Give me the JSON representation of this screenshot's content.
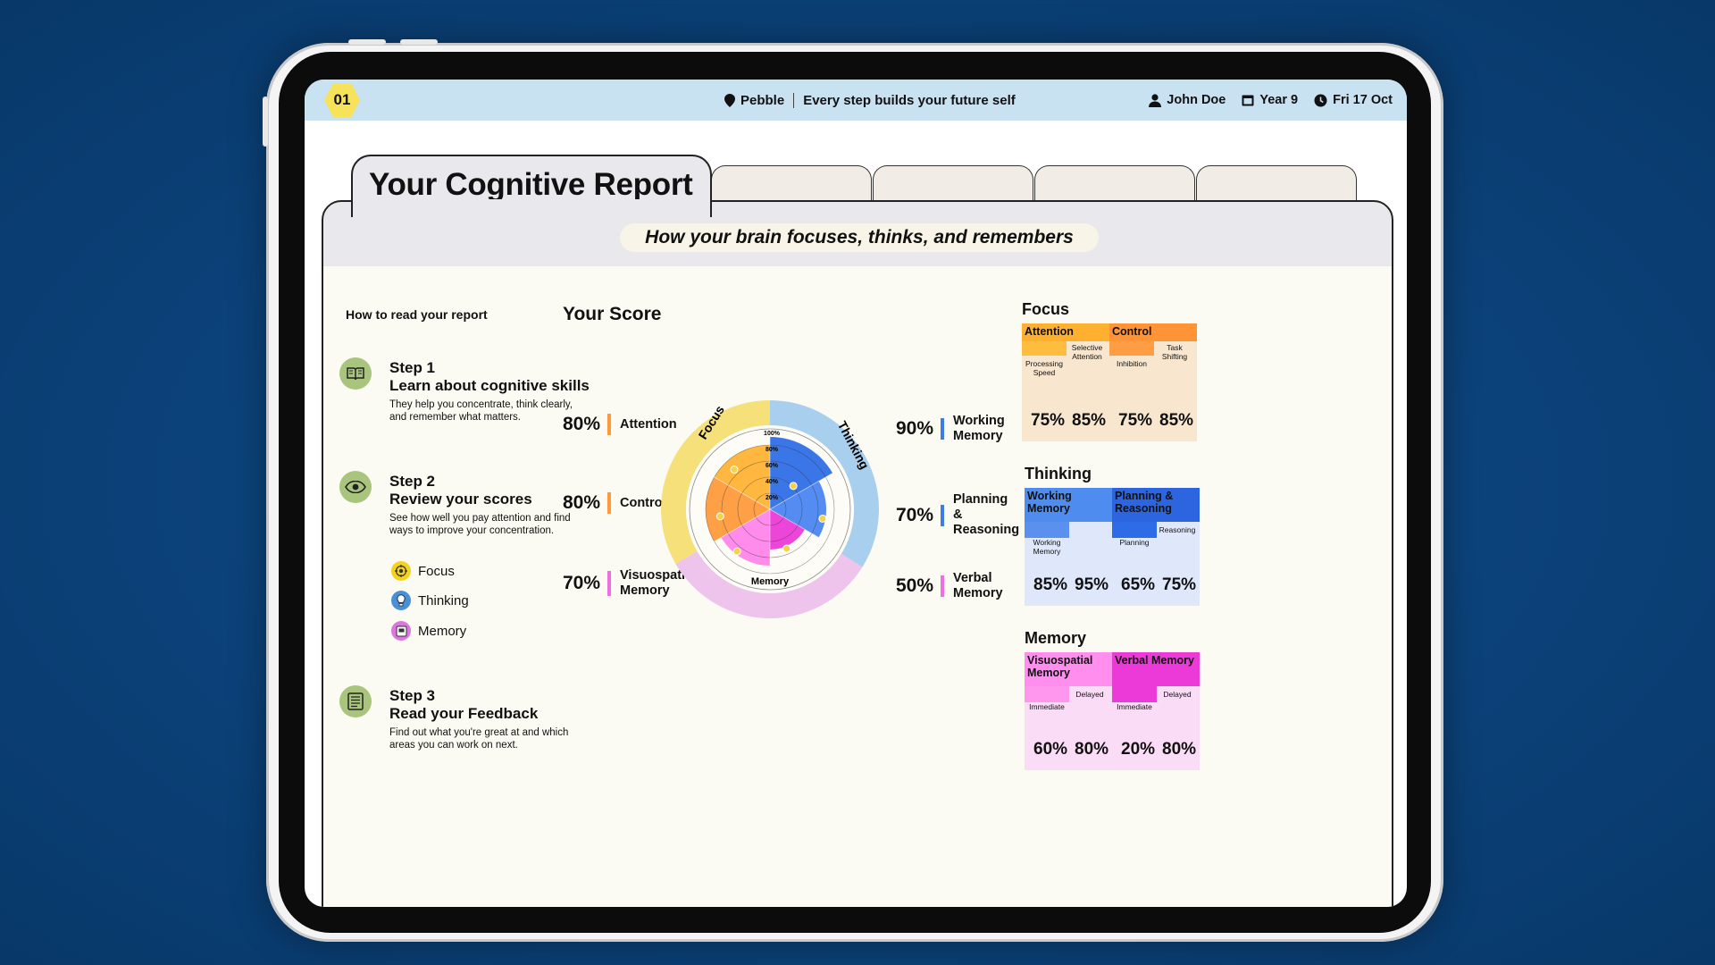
{
  "colors": {
    "background": "#0b4178",
    "topbar": "#c8e2f2",
    "focus_ring": "#f6e07a",
    "thinking_ring": "#a8d0ee",
    "memory_ring": "#eec3ec",
    "attention": "#ffb336",
    "control": "#ff9a3c",
    "working_memory": "#2f6fe6",
    "planning": "#4b86f0",
    "visuospatial": "#ff86ea",
    "verbal": "#ec3bd8"
  },
  "topbar": {
    "badge": "01",
    "app_name": "Pebble",
    "tagline": "Every step builds your future self",
    "user": "John Doe",
    "year": "Year 9",
    "date": "Fri 17 Oct"
  },
  "report": {
    "title": "Your Cognitive Report",
    "subtitle": "How your brain focuses, thinks, and remembers"
  },
  "guide": {
    "heading": "How to read your report",
    "steps": [
      {
        "number": "Step 1",
        "title": "Learn about cognitive skills",
        "desc": "They help you concentrate, think clearly, and remember what matters.",
        "icon": "book-icon"
      },
      {
        "number": "Step 2",
        "title": "Review your scores",
        "desc": "See how well you pay attention and find ways to improve your concentration.",
        "icon": "eye-icon"
      },
      {
        "number": "Step 3",
        "title": "Read your Feedback",
        "desc": "Find out what you're great at and which areas you can work on next.",
        "icon": "document-icon"
      }
    ],
    "legend": [
      {
        "label": "Focus",
        "icon": "target-icon",
        "color": "#f5d21b"
      },
      {
        "label": "Thinking",
        "icon": "bulb-icon",
        "color": "#4a90d9"
      },
      {
        "label": "Memory",
        "icon": "memory-icon",
        "color": "#dd77df"
      }
    ]
  },
  "score": {
    "title": "Your Score",
    "items": [
      {
        "pct": "80%",
        "label": "Attention",
        "color": "#ff9a3c"
      },
      {
        "pct": "80%",
        "label": "Control",
        "color": "#ff9a3c"
      },
      {
        "pct": "70%",
        "label": "Visuospatial Memory",
        "color": "#ee6fe0"
      },
      {
        "pct": "90%",
        "label": "Working Memory",
        "color": "#3d7be6"
      },
      {
        "pct": "70%",
        "label": "Planning & Reasoning",
        "color": "#3d7be6"
      },
      {
        "pct": "50%",
        "label": "Verbal Memory",
        "color": "#ee6fe0"
      }
    ]
  },
  "chart_data": {
    "type": "polar-area",
    "categories": [
      "Working Memory",
      "Planning & Reasoning",
      "Verbal Memory",
      "Visuospatial Memory",
      "Control",
      "Attention"
    ],
    "values": [
      90,
      70,
      50,
      70,
      80,
      80
    ],
    "groups": [
      "Thinking",
      "Thinking",
      "Memory",
      "Memory",
      "Focus",
      "Focus"
    ],
    "ring_labels": [
      "Focus",
      "Thinking",
      "Memory"
    ],
    "tick_labels": [
      "100%",
      "80%",
      "60%",
      "40%",
      "20%"
    ],
    "ylim": [
      0,
      100
    ]
  },
  "cards": {
    "groups": [
      {
        "title": "Focus",
        "items": [
          {
            "name": "Attention",
            "sub1": "Selective Attention",
            "sub2": "Processing Speed",
            "p1": "75%",
            "p2": "85%",
            "top": "#ffb02e",
            "blk": "#ffbd3f",
            "bg": "#f8e6cf"
          },
          {
            "name": "Control",
            "sub1": "Task Shifting",
            "sub2": "Inhibition",
            "p1": "75%",
            "p2": "85%",
            "top": "#ff9437",
            "blk": "#ff9d44",
            "bg": "#f8e6cf"
          }
        ]
      },
      {
        "title": "Thinking",
        "items": [
          {
            "name": "Working Memory",
            "sub1": "",
            "sub2": "Working Memory",
            "p1": "85%",
            "p2": "95%",
            "top": "#4f8cf0",
            "blk": "#5a91ef",
            "bg": "#dfe8fb"
          },
          {
            "name": "Planning & Reasoning",
            "sub1": "Reasoning",
            "sub2": "Planning",
            "p1": "65%",
            "p2": "75%",
            "top": "#2d64df",
            "blk": "#2e6be6",
            "bg": "#dfe8fb"
          }
        ]
      },
      {
        "title": "Memory",
        "items": [
          {
            "name": "Visuospatial Memory",
            "sub1": "Delayed",
            "sub2": "Immediate",
            "p1": "60%",
            "p2": "80%",
            "top": "#ff8eee",
            "blk": "#ff97ef",
            "bg": "#fbdcf6"
          },
          {
            "name": "Verbal Memory",
            "sub1": "Delayed",
            "sub2": "Immediate",
            "p1": "20%",
            "p2": "80%",
            "top": "#ec3ad8",
            "blk": "#ec3ad8",
            "bg": "#fbdcf6"
          }
        ]
      }
    ]
  }
}
